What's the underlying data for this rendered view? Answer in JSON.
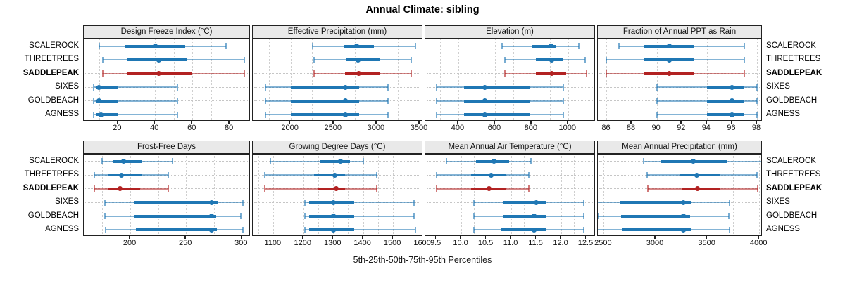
{
  "title": "Annual Climate: sibling",
  "caption": "5th-25th-50th-75th-95th Percentiles",
  "colors": {
    "series_normal": "#1f77b4",
    "series_highlight": "#b22222",
    "strip_background": "#e9e9e9",
    "panel_border": "#222222",
    "gridline": "#cfcfcf",
    "guide_line": "#c6c6c6"
  },
  "stations": [
    {
      "name": "SCALEROCK",
      "highlight": false
    },
    {
      "name": "THREETREES",
      "highlight": false
    },
    {
      "name": "SADDLEPEAK",
      "highlight": true
    },
    {
      "name": "SIXES",
      "highlight": false
    },
    {
      "name": "GOLDBEACH",
      "highlight": false
    },
    {
      "name": "AGNESS",
      "highlight": false
    }
  ],
  "chart_data": {
    "type": "percentile-dotplot",
    "percentile_labels": [
      "5th",
      "25th",
      "50th",
      "75th",
      "95th"
    ],
    "legend_note": "one horizontal whisker row per station; thin line = 5th-95th, thick band = 25th-75th, dot = median; SADDLEPEAK highlighted red",
    "panels": [
      {
        "key": "design-freeze-index",
        "title": "Design Freeze Index (°C)",
        "row": 0,
        "col": 0,
        "xlim": [
          1.7,
          91.3
        ],
        "ticks": [
          20,
          40,
          60,
          80
        ],
        "tick_labels": [
          "20",
          "40",
          "60",
          "80"
        ],
        "gridlines": [
          10,
          20,
          30,
          40,
          50,
          60,
          70,
          80,
          90
        ],
        "values": [
          [
            10,
            24,
            40,
            56,
            78
          ],
          [
            12,
            25,
            42,
            57,
            88
          ],
          [
            12,
            25,
            42,
            60,
            88
          ],
          [
            7,
            8,
            10,
            20,
            52
          ],
          [
            7,
            8,
            10,
            20,
            52
          ],
          [
            7,
            8,
            11,
            20,
            52
          ]
        ]
      },
      {
        "key": "effective-precipitation",
        "title": "Effective Precipitation (mm)",
        "row": 0,
        "col": 1,
        "xlim": [
          1561,
          3541
        ],
        "ticks": [
          2000,
          2500,
          3000,
          3500
        ],
        "tick_labels": [
          "2000",
          "2500",
          "3000",
          "3500"
        ],
        "gridlines": [
          1750,
          2000,
          2250,
          2500,
          2750,
          3000,
          3250,
          3500
        ],
        "values": [
          [
            2255,
            2625,
            2765,
            2965,
            3450
          ],
          [
            2270,
            2640,
            2785,
            3040,
            3400
          ],
          [
            2270,
            2630,
            2790,
            3045,
            3405
          ],
          [
            1710,
            2000,
            2640,
            2800,
            3130
          ],
          [
            1710,
            2000,
            2640,
            2800,
            3130
          ],
          [
            1710,
            2005,
            2640,
            2800,
            3130
          ]
        ]
      },
      {
        "key": "elevation",
        "title": "Elevation (m)",
        "row": 0,
        "col": 2,
        "xlim": [
          219,
          1151
        ],
        "ticks": [
          400,
          600,
          800,
          1000
        ],
        "tick_labels": [
          "400",
          "600",
          "800",
          "1000"
        ],
        "gridlines": [
          300,
          400,
          500,
          600,
          700,
          800,
          900,
          1000,
          1100
        ],
        "values": [
          [
            640,
            800,
            905,
            935,
            1060
          ],
          [
            655,
            825,
            910,
            975,
            1095
          ],
          [
            655,
            825,
            910,
            990,
            1100
          ],
          [
            280,
            430,
            545,
            790,
            975
          ],
          [
            280,
            430,
            545,
            790,
            975
          ],
          [
            280,
            430,
            545,
            790,
            975
          ]
        ]
      },
      {
        "key": "fraction-ppt-rain",
        "title": "Fraction of Annual PPT as Rain",
        "row": 0,
        "col": 3,
        "xlim": [
          85.3,
          98.45
        ],
        "ticks": [
          86,
          88,
          90,
          92,
          94,
          96,
          98
        ],
        "tick_labels": [
          "86",
          "88",
          "90",
          "92",
          "94",
          "96",
          "98"
        ],
        "gridlines": [
          86,
          88,
          90,
          92,
          94,
          96,
          98
        ],
        "values": [
          [
            87,
            89,
            91,
            93,
            97
          ],
          [
            86,
            89,
            91,
            93,
            97
          ],
          [
            86,
            89,
            91,
            93,
            97
          ],
          [
            90,
            94,
            96,
            97,
            98
          ],
          [
            90,
            94,
            96,
            97,
            98
          ],
          [
            90,
            94,
            96,
            97,
            98
          ]
        ]
      },
      {
        "key": "frost-free-days",
        "title": "Frost-Free Days",
        "row": 1,
        "col": 0,
        "xlim": [
          158.3,
          308
        ],
        "ticks": [
          200,
          250,
          300
        ],
        "tick_labels": [
          "200",
          "250",
          "300"
        ],
        "gridlines": [
          175,
          200,
          225,
          250,
          275,
          300
        ],
        "values": [
          [
            175,
            184,
            194,
            211,
            238
          ],
          [
            168,
            180,
            192,
            210,
            234
          ],
          [
            168,
            180,
            191,
            209,
            234
          ],
          [
            177,
            203,
            273,
            279,
            301
          ],
          [
            177,
            204,
            273,
            277,
            299
          ],
          [
            178,
            205,
            273,
            278,
            301
          ]
        ]
      },
      {
        "key": "growing-degree-days",
        "title": "Growing Degree Days (°C)",
        "row": 1,
        "col": 1,
        "xlim": [
          1031,
          1601
        ],
        "ticks": [
          1100,
          1200,
          1300,
          1400,
          1500,
          1600
        ],
        "tick_labels": [
          "1100",
          "1200",
          "1300",
          "1400",
          "1500",
          "1600"
        ],
        "gridlines": [
          1050,
          1100,
          1150,
          1200,
          1250,
          1300,
          1350,
          1400,
          1450,
          1500,
          1550,
          1600
        ],
        "values": [
          [
            1090,
            1255,
            1325,
            1355,
            1400
          ],
          [
            1070,
            1235,
            1305,
            1340,
            1445
          ],
          [
            1070,
            1250,
            1310,
            1340,
            1445
          ],
          [
            1205,
            1220,
            1300,
            1370,
            1570
          ],
          [
            1205,
            1220,
            1300,
            1370,
            1570
          ],
          [
            1205,
            1220,
            1300,
            1370,
            1575
          ]
        ]
      },
      {
        "key": "mean-annual-air-temperature",
        "title": "Mean Annual Air Temperature (°C)",
        "row": 1,
        "col": 2,
        "xlim": [
          9.28,
          12.69
        ],
        "ticks": [
          9.5,
          10,
          10.5,
          11,
          11.5,
          12,
          12.5
        ],
        "tick_labels": [
          "9.5",
          "10.0",
          "10.5",
          "11.0",
          "11.5",
          "12.0",
          "12.5"
        ],
        "gridlines": [
          9.5,
          9.75,
          10,
          10.25,
          10.5,
          10.75,
          11,
          11.25,
          11.5,
          11.75,
          12,
          12.25,
          12.5
        ],
        "values": [
          [
            9.7,
            10.3,
            10.65,
            10.95,
            11.4
          ],
          [
            9.5,
            10.2,
            10.6,
            10.9,
            11.35
          ],
          [
            9.5,
            10.2,
            10.55,
            10.9,
            11.35
          ],
          [
            10.25,
            10.85,
            11.5,
            11.7,
            12.45
          ],
          [
            10.25,
            10.85,
            11.45,
            11.7,
            12.45
          ],
          [
            10.25,
            10.8,
            11.45,
            11.7,
            12.45
          ]
        ]
      },
      {
        "key": "mean-annual-precipitation",
        "title": "Mean Annual Precipitation (mm)",
        "row": 1,
        "col": 3,
        "xlim": [
          2443,
          4032
        ],
        "ticks": [
          2500,
          3000,
          3500,
          4000
        ],
        "tick_labels": [
          "2500",
          "3000",
          "3500",
          "4000"
        ],
        "gridlines": [
          2500,
          2750,
          3000,
          3250,
          3500,
          3750,
          4000
        ],
        "values": [
          [
            2885,
            3050,
            3365,
            3690,
            4040
          ],
          [
            2915,
            3240,
            3400,
            3620,
            3975
          ],
          [
            2925,
            3250,
            3405,
            3620,
            3985
          ],
          [
            2430,
            2660,
            3265,
            3340,
            3710
          ],
          [
            2440,
            2670,
            3265,
            3330,
            3705
          ],
          [
            2430,
            2675,
            3265,
            3340,
            3710
          ]
        ]
      }
    ]
  }
}
